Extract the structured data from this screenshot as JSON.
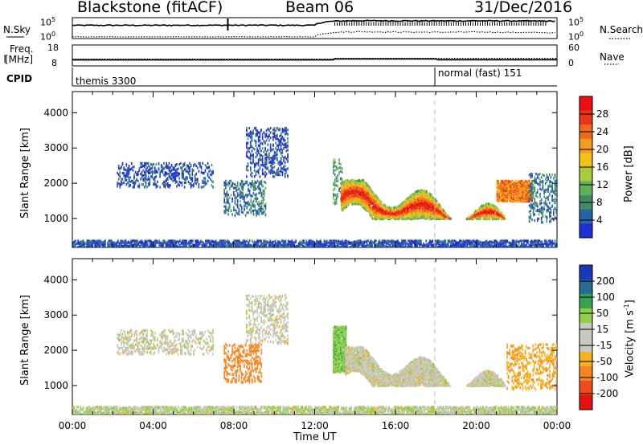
{
  "header": {
    "radar": "Blackstone (fitACF)",
    "beam": "Beam 06",
    "date": "31/Dec/2016"
  },
  "strip_labels": {
    "nsky": "N.Sky",
    "nsky_top": "10^5",
    "nsky_bottom": "10^0",
    "nsearch": "N.Search",
    "nsearch_top": "10^5",
    "nsearch_bottom": "10^0",
    "freq": "Freq.",
    "freq_unit": "[MHz]",
    "freq_top": "18",
    "freq_bottom": "8",
    "nave": "Nave",
    "nave_top": "60",
    "nave_bottom": "0",
    "cpid": "CPID"
  },
  "cpid_modes": [
    {
      "label": "themis 3300",
      "start_hour": 0
    },
    {
      "label": "normal (fast) 151",
      "start_hour": 18
    }
  ],
  "colors": {
    "power": [
      "#1f2fd8",
      "#2a62a8",
      "#3f8a64",
      "#5fb05a",
      "#a8cc3c",
      "#f2c21a",
      "#f59a1c",
      "#f06a1c",
      "#e8341a",
      "#ec0e0e"
    ],
    "velocity": [
      "#e80f0f",
      "#f04a1a",
      "#f7841e",
      "#f5b11f",
      "#c8c8c0",
      "#c8c8c0",
      "#8fd04a",
      "#39a04e",
      "#2a6a95",
      "#1c36b8"
    ]
  },
  "chart_data": [
    {
      "type": "line",
      "title": "N.Sky / N.Search",
      "x_unit": "hour UT",
      "xlim": [
        0,
        24
      ],
      "series": [
        {
          "name": "N.Sky",
          "x": [
            0,
            3,
            6,
            9,
            12,
            13,
            14,
            16,
            18,
            20,
            22,
            24
          ],
          "y": [
            2000,
            2000,
            2100,
            2100,
            2000,
            30000,
            40000,
            38000,
            35000,
            36000,
            34000,
            30000
          ]
        },
        {
          "name": "N.Search",
          "x": [
            0,
            3,
            6,
            9,
            12,
            13,
            14,
            16,
            18,
            20,
            22,
            24
          ],
          "y": [
            1,
            1,
            1,
            1,
            1,
            20,
            30,
            25,
            22,
            25,
            20,
            15
          ]
        }
      ],
      "ylim": [
        1,
        100000
      ]
    },
    {
      "type": "line",
      "title": "Freq. / Nave",
      "x_unit": "hour UT",
      "xlim": [
        0,
        24
      ],
      "series": [
        {
          "name": "Freq.",
          "x": [
            0,
            12.9,
            13.0,
            18.0,
            18.1,
            24
          ],
          "y": [
            10.5,
            10.5,
            11.0,
            11.0,
            10.6,
            10.6
          ]
        },
        {
          "name": "Nave",
          "x": [
            0,
            12.9,
            13.0,
            24
          ],
          "y": [
            12,
            12,
            15,
            15
          ]
        }
      ],
      "ylim": [
        8,
        18
      ]
    },
    {
      "type": "heatmap",
      "ylabel": "Slant Range [km]",
      "colorbar_label": "Power [dB]",
      "colorbar_ticks": [
        "28",
        "24",
        "20",
        "16",
        "12",
        "8",
        "4"
      ],
      "xlim": [
        0,
        24
      ],
      "ylim": [
        180,
        4600
      ],
      "yticks": [
        "4000",
        "3000",
        "2000",
        "1000"
      ],
      "regions": [
        {
          "x": [
            0.0,
            24.0
          ],
          "y": [
            200,
            400
          ],
          "level": 1,
          "desc": "ground scatter band"
        },
        {
          "x": [
            2.2,
            7.0
          ],
          "y": [
            1900,
            2600
          ],
          "level": 1
        },
        {
          "x": [
            7.5,
            9.6
          ],
          "y": [
            1100,
            2100
          ],
          "level": 2
        },
        {
          "x": [
            8.6,
            10.7
          ],
          "y": [
            2200,
            3600
          ],
          "level": 1
        },
        {
          "x": [
            12.9,
            13.4
          ],
          "y": [
            1400,
            2700
          ],
          "level": 3
        },
        {
          "x": [
            13.3,
            21.6
          ],
          "y": [
            1000,
            2100
          ],
          "level": 6
        },
        {
          "x": [
            21.0,
            22.8
          ],
          "y": [
            1500,
            2100
          ],
          "level": 7
        },
        {
          "x": [
            22.6,
            24.0
          ],
          "y": [
            900,
            2300
          ],
          "level": 2
        }
      ]
    },
    {
      "type": "heatmap",
      "ylabel": "Slant Range [km]",
      "colorbar_label": "Velocity [m s^-1]",
      "colorbar_ticks": [
        "200",
        "100",
        "50",
        "15",
        "-15",
        "-50",
        "-100",
        "-200"
      ],
      "xlim": [
        0,
        24
      ],
      "ylim": [
        180,
        4600
      ],
      "yticks": [
        "4000",
        "3000",
        "2000",
        "1000"
      ],
      "xticks": [
        "00:00",
        "04:00",
        "08:00",
        "12:00",
        "16:00",
        "20:00",
        "00:00"
      ],
      "xlabel": "Time UT",
      "regions": [
        {
          "x": [
            0.0,
            24.0
          ],
          "y": [
            200,
            420
          ],
          "velocity": 10,
          "desc": "ground scatter band"
        },
        {
          "x": [
            2.2,
            7.0
          ],
          "y": [
            1900,
            2600
          ],
          "velocity": 0
        },
        {
          "x": [
            7.5,
            9.4
          ],
          "y": [
            1100,
            2200
          ],
          "velocity": -70
        },
        {
          "x": [
            8.6,
            10.7
          ],
          "y": [
            2200,
            3600
          ],
          "velocity": 0
        },
        {
          "x": [
            12.9,
            13.6
          ],
          "y": [
            1400,
            2700
          ],
          "velocity": 40
        },
        {
          "x": [
            13.5,
            21.8
          ],
          "y": [
            1000,
            2100
          ],
          "velocity": 0
        },
        {
          "x": [
            21.5,
            24.0
          ],
          "y": [
            900,
            2200
          ],
          "velocity": -40
        }
      ]
    }
  ]
}
